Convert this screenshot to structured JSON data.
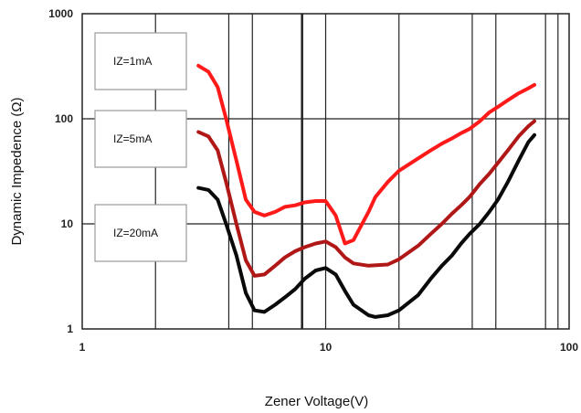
{
  "chart_data": {
    "type": "line",
    "title": "",
    "xlabel": "Zener Voltage(V)",
    "ylabel": "Dynamic Impedence (Ω)",
    "xscale": "log",
    "yscale": "log",
    "xlim": [
      1,
      100
    ],
    "ylim": [
      1,
      1000
    ],
    "x_ticks": [
      "1",
      "10",
      "100"
    ],
    "y_ticks": [
      "1",
      "10",
      "100",
      "1000"
    ],
    "grid": true,
    "legend_placement": "left",
    "series": [
      {
        "name": "IZ=1mA",
        "color": "#ff1a1a",
        "points": [
          [
            3.0,
            320
          ],
          [
            3.3,
            280
          ],
          [
            3.6,
            200
          ],
          [
            3.9,
            100
          ],
          [
            4.3,
            40
          ],
          [
            4.7,
            17
          ],
          [
            5.1,
            13
          ],
          [
            5.6,
            12
          ],
          [
            6.2,
            13
          ],
          [
            6.8,
            14.5
          ],
          [
            7.5,
            15
          ],
          [
            8.2,
            16
          ],
          [
            9.1,
            16.5
          ],
          [
            10,
            16.5
          ],
          [
            11,
            12
          ],
          [
            12,
            6.5
          ],
          [
            13,
            7
          ],
          [
            15,
            13
          ],
          [
            16,
            18
          ],
          [
            18,
            25
          ],
          [
            20,
            32
          ],
          [
            24,
            42
          ],
          [
            27,
            50
          ],
          [
            30,
            58
          ],
          [
            33,
            65
          ],
          [
            36,
            73
          ],
          [
            39,
            80
          ],
          [
            43,
            95
          ],
          [
            47,
            115
          ],
          [
            51,
            130
          ],
          [
            56,
            150
          ],
          [
            62,
            175
          ],
          [
            68,
            195
          ],
          [
            72,
            210
          ]
        ]
      },
      {
        "name": "IZ=5mA",
        "color": "#b01818",
        "points": [
          [
            3.0,
            75
          ],
          [
            3.3,
            68
          ],
          [
            3.6,
            50
          ],
          [
            3.9,
            25
          ],
          [
            4.3,
            10
          ],
          [
            4.7,
            4.5
          ],
          [
            5.1,
            3.2
          ],
          [
            5.6,
            3.3
          ],
          [
            6.2,
            4
          ],
          [
            6.8,
            4.8
          ],
          [
            7.5,
            5.5
          ],
          [
            8.2,
            6
          ],
          [
            9.1,
            6.5
          ],
          [
            10,
            6.8
          ],
          [
            11,
            6
          ],
          [
            12,
            4.8
          ],
          [
            13,
            4.2
          ],
          [
            15,
            4
          ],
          [
            18,
            4.1
          ],
          [
            20,
            4.6
          ],
          [
            24,
            6.2
          ],
          [
            27,
            8
          ],
          [
            30,
            10
          ],
          [
            33,
            12.5
          ],
          [
            36,
            15
          ],
          [
            39,
            18
          ],
          [
            43,
            24
          ],
          [
            47,
            30
          ],
          [
            51,
            38
          ],
          [
            56,
            50
          ],
          [
            62,
            68
          ],
          [
            68,
            85
          ],
          [
            72,
            95
          ]
        ]
      },
      {
        "name": "IZ=20mA",
        "color": "#0a0a0a",
        "points": [
          [
            3.0,
            22
          ],
          [
            3.3,
            21
          ],
          [
            3.6,
            17
          ],
          [
            3.9,
            10
          ],
          [
            4.3,
            5
          ],
          [
            4.7,
            2.2
          ],
          [
            5.1,
            1.5
          ],
          [
            5.6,
            1.45
          ],
          [
            6.2,
            1.7
          ],
          [
            6.8,
            2
          ],
          [
            7.5,
            2.4
          ],
          [
            8.2,
            3
          ],
          [
            9.1,
            3.6
          ],
          [
            10,
            3.8
          ],
          [
            11,
            3.3
          ],
          [
            12,
            2.3
          ],
          [
            13,
            1.7
          ],
          [
            15,
            1.35
          ],
          [
            16,
            1.3
          ],
          [
            18,
            1.35
          ],
          [
            20,
            1.5
          ],
          [
            24,
            2.1
          ],
          [
            27,
            3
          ],
          [
            30,
            4
          ],
          [
            33,
            5
          ],
          [
            36,
            6.5
          ],
          [
            39,
            8
          ],
          [
            43,
            10
          ],
          [
            47,
            13
          ],
          [
            51,
            17
          ],
          [
            56,
            25
          ],
          [
            62,
            40
          ],
          [
            68,
            60
          ],
          [
            72,
            70
          ]
        ]
      }
    ],
    "annotations": [
      "IZ=1mA",
      "IZ=5mA",
      "IZ=20mA"
    ]
  }
}
